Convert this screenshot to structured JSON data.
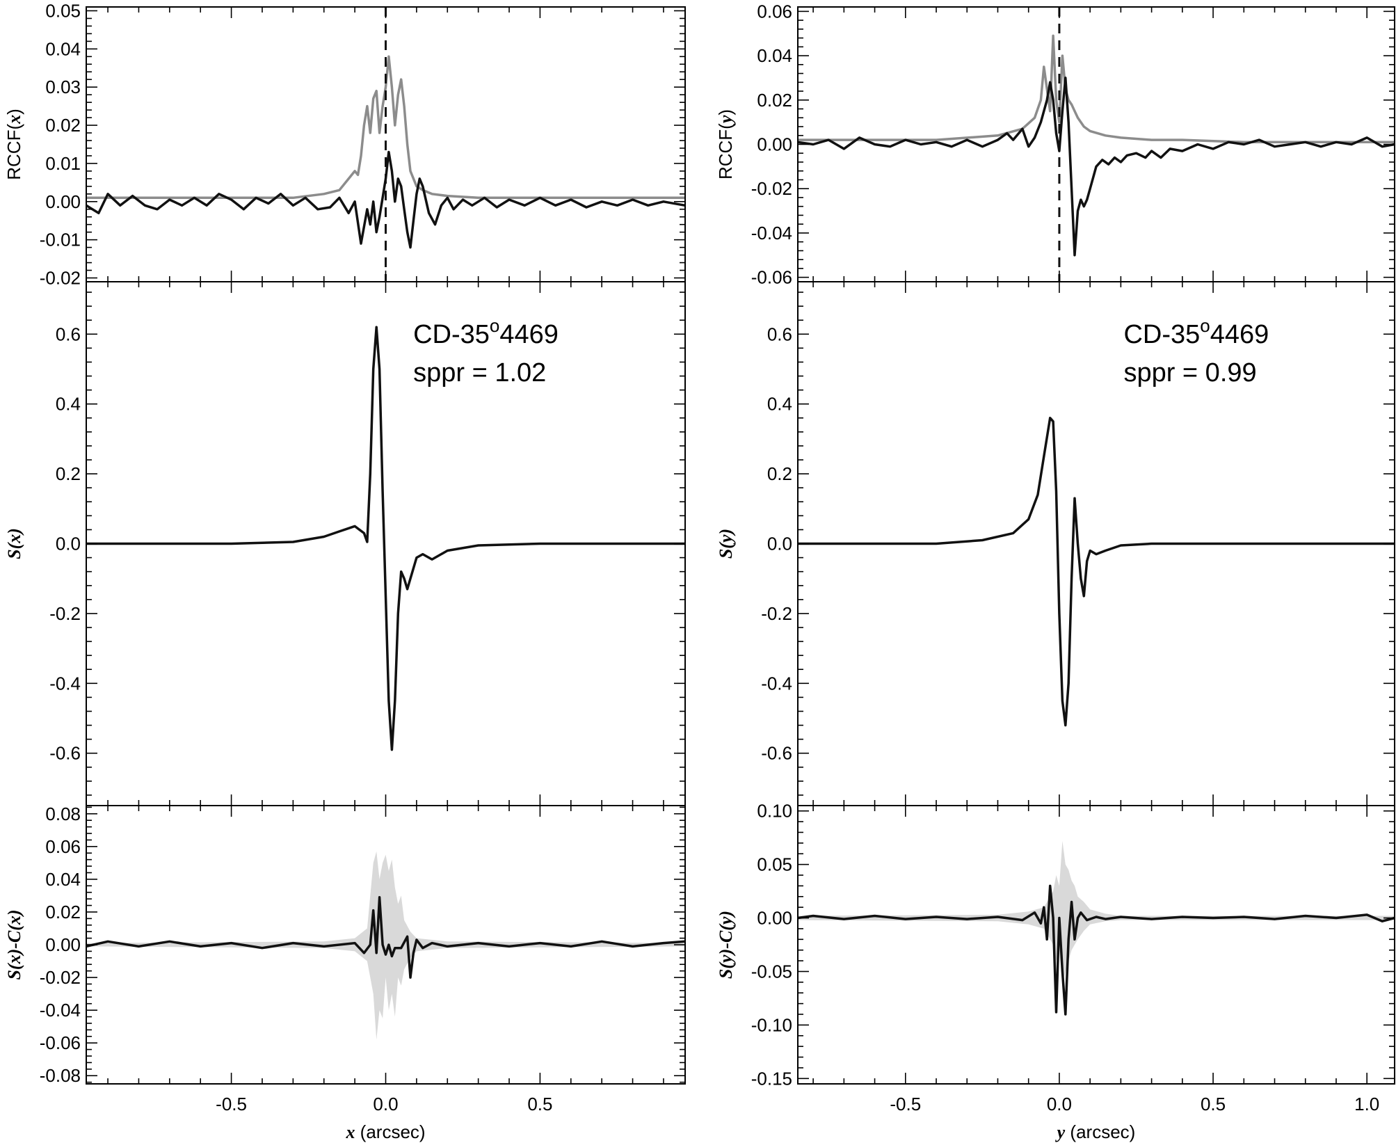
{
  "chart_data": [
    {
      "type": "line",
      "panel": "left-top",
      "ylabel": "RCCF(x)",
      "ylabel_parts": [
        "RCCF(",
        "x",
        ")"
      ],
      "xlim": [
        -0.97,
        0.97
      ],
      "ylim": [
        -0.021,
        0.051
      ],
      "yticks": [
        -0.02,
        -0.01,
        0.0,
        0.01,
        0.02,
        0.03,
        0.04,
        0.05
      ],
      "ytick_labels": [
        "-0.02",
        "-0.01",
        "0.00",
        "0.01",
        "0.02",
        "0.03",
        "0.04",
        "0.05"
      ],
      "xticks": [
        -0.5,
        0.0,
        0.5
      ],
      "reference_line": {
        "x": 0.0,
        "style": "dashed"
      },
      "series": [
        {
          "color": "#8c8c8c",
          "x": [
            -0.97,
            -0.3,
            -0.2,
            -0.15,
            -0.12,
            -0.1,
            -0.09,
            -0.08,
            -0.07,
            -0.06,
            -0.05,
            -0.04,
            -0.03,
            -0.02,
            -0.01,
            0.0,
            0.01,
            0.02,
            0.03,
            0.04,
            0.05,
            0.06,
            0.07,
            0.08,
            0.1,
            0.12,
            0.15,
            0.2,
            0.3,
            0.97
          ],
          "y": [
            0.001,
            0.001,
            0.002,
            0.003,
            0.006,
            0.008,
            0.007,
            0.012,
            0.02,
            0.025,
            0.018,
            0.027,
            0.029,
            0.018,
            0.025,
            0.03,
            0.038,
            0.03,
            0.02,
            0.028,
            0.032,
            0.025,
            0.015,
            0.008,
            0.004,
            0.003,
            0.002,
            0.0015,
            0.001,
            0.001
          ]
        },
        {
          "color": "#111111",
          "x": [
            -0.97,
            -0.93,
            -0.9,
            -0.86,
            -0.82,
            -0.78,
            -0.74,
            -0.7,
            -0.66,
            -0.62,
            -0.58,
            -0.54,
            -0.5,
            -0.46,
            -0.42,
            -0.38,
            -0.34,
            -0.3,
            -0.26,
            -0.22,
            -0.18,
            -0.15,
            -0.12,
            -0.1,
            -0.08,
            -0.06,
            -0.05,
            -0.04,
            -0.03,
            -0.02,
            -0.01,
            0.0,
            0.01,
            0.02,
            0.03,
            0.04,
            0.05,
            0.06,
            0.07,
            0.08,
            0.09,
            0.1,
            0.11,
            0.12,
            0.14,
            0.16,
            0.18,
            0.2,
            0.22,
            0.25,
            0.28,
            0.32,
            0.36,
            0.4,
            0.45,
            0.5,
            0.55,
            0.6,
            0.65,
            0.7,
            0.75,
            0.8,
            0.85,
            0.9,
            0.97
          ],
          "y": [
            -0.001,
            -0.003,
            0.002,
            -0.001,
            0.0015,
            -0.001,
            -0.002,
            0.0005,
            -0.001,
            0.001,
            -0.001,
            0.002,
            0.0005,
            -0.002,
            0.001,
            -0.0005,
            0.002,
            -0.001,
            0.001,
            -0.002,
            -0.0015,
            0.001,
            -0.003,
            0.0,
            -0.011,
            -0.002,
            -0.006,
            0.0,
            -0.008,
            -0.004,
            0.001,
            0.006,
            0.013,
            0.008,
            0.0,
            0.006,
            0.004,
            -0.002,
            -0.008,
            -0.012,
            -0.005,
            0.002,
            0.006,
            0.004,
            -0.003,
            -0.006,
            -0.001,
            0.001,
            -0.002,
            0.0005,
            -0.001,
            0.001,
            -0.0015,
            0.0005,
            -0.001,
            0.001,
            -0.001,
            0.0005,
            -0.0015,
            0.0,
            -0.001,
            0.0005,
            -0.001,
            0.0,
            -0.001
          ]
        }
      ]
    },
    {
      "type": "line",
      "panel": "left-middle",
      "ylabel": "S(x)",
      "ylabel_parts": [
        "",
        "S(x)",
        ""
      ],
      "xlim": [
        -0.97,
        0.97
      ],
      "ylim": [
        -0.75,
        0.75
      ],
      "yticks": [
        -0.6,
        -0.4,
        -0.2,
        0.0,
        0.2,
        0.4,
        0.6
      ],
      "ytick_labels": [
        "-0.6",
        "-0.4",
        "-0.2",
        "0.0",
        "0.2",
        "0.4",
        "0.6"
      ],
      "xticks": [
        -0.5,
        0.0,
        0.5
      ],
      "annotation": {
        "name": "CD-35",
        "superscript": "o",
        "suffix": "4469",
        "sppr": "sppr = 1.02"
      },
      "series": [
        {
          "color": "#111111",
          "x": [
            -0.97,
            -0.5,
            -0.3,
            -0.2,
            -0.15,
            -0.1,
            -0.07,
            -0.06,
            -0.05,
            -0.04,
            -0.03,
            -0.02,
            -0.01,
            0.0,
            0.01,
            0.02,
            0.03,
            0.04,
            0.05,
            0.06,
            0.07,
            0.08,
            0.1,
            0.12,
            0.15,
            0.2,
            0.3,
            0.5,
            0.97
          ],
          "y": [
            0.0,
            0.0,
            0.005,
            0.02,
            0.035,
            0.05,
            0.03,
            0.005,
            0.2,
            0.5,
            0.62,
            0.5,
            0.15,
            -0.15,
            -0.45,
            -0.59,
            -0.45,
            -0.2,
            -0.08,
            -0.1,
            -0.13,
            -0.1,
            -0.04,
            -0.03,
            -0.045,
            -0.02,
            -0.005,
            0.0,
            0.0
          ]
        }
      ]
    },
    {
      "type": "line",
      "panel": "left-bottom",
      "ylabel": "S(x)-C(x)",
      "ylabel_parts": [
        "",
        "S(x)-C(x)",
        ""
      ],
      "xlim": [
        -0.97,
        0.97
      ],
      "ylim": [
        -0.085,
        0.085
      ],
      "yticks": [
        -0.08,
        -0.06,
        -0.04,
        -0.02,
        0.0,
        0.02,
        0.04,
        0.06,
        0.08
      ],
      "ytick_labels": [
        "-0.08",
        "-0.06",
        "-0.04",
        "-0.02",
        "0.00",
        "0.02",
        "0.04",
        "0.06",
        "0.08"
      ],
      "xticks": [
        -0.5,
        0.0,
        0.5
      ],
      "xtick_labels": [
        "-0.5",
        "0.0",
        "0.5"
      ],
      "xlabel": "x (arcsec)",
      "xlabel_parts": [
        "x",
        " (arcsec)"
      ],
      "band": {
        "color": "#d9d9d9",
        "x": [
          -0.97,
          -0.2,
          -0.1,
          -0.06,
          -0.04,
          -0.03,
          -0.02,
          -0.01,
          0.0,
          0.01,
          0.02,
          0.03,
          0.04,
          0.05,
          0.06,
          0.08,
          0.1,
          0.2,
          0.97
        ],
        "upper": [
          0.001,
          0.002,
          0.004,
          0.01,
          0.05,
          0.057,
          0.04,
          0.05,
          0.055,
          0.045,
          0.052,
          0.035,
          0.025,
          0.03,
          0.015,
          0.008,
          0.004,
          0.002,
          0.001
        ],
        "lower": [
          -0.001,
          -0.002,
          -0.004,
          -0.01,
          -0.03,
          -0.058,
          -0.04,
          -0.045,
          -0.02,
          -0.04,
          -0.03,
          -0.044,
          -0.02,
          -0.025,
          -0.015,
          -0.008,
          -0.004,
          -0.002,
          -0.001
        ]
      },
      "series": [
        {
          "color": "#111111",
          "x": [
            -0.97,
            -0.9,
            -0.8,
            -0.7,
            -0.6,
            -0.5,
            -0.4,
            -0.3,
            -0.2,
            -0.1,
            -0.07,
            -0.05,
            -0.04,
            -0.03,
            -0.02,
            -0.01,
            0.0,
            0.01,
            0.02,
            0.03,
            0.05,
            0.07,
            0.08,
            0.09,
            0.1,
            0.12,
            0.15,
            0.2,
            0.3,
            0.4,
            0.5,
            0.6,
            0.7,
            0.8,
            0.9,
            0.97
          ],
          "y": [
            -0.001,
            0.002,
            -0.001,
            0.002,
            -0.001,
            0.001,
            -0.002,
            0.001,
            -0.001,
            0.001,
            -0.005,
            0.0,
            0.021,
            -0.005,
            0.029,
            0.0,
            -0.006,
            0.0,
            -0.007,
            -0.002,
            -0.002,
            0.005,
            -0.02,
            -0.005,
            0.003,
            -0.002,
            0.001,
            -0.001,
            0.001,
            -0.001,
            0.001,
            -0.001,
            0.002,
            -0.001,
            0.001,
            0.002
          ]
        }
      ]
    },
    {
      "type": "line",
      "panel": "right-top",
      "ylabel": "RCCF(y)",
      "ylabel_parts": [
        "RCCF(",
        "y",
        ")"
      ],
      "xlim": [
        -0.85,
        1.09
      ],
      "ylim": [
        -0.062,
        0.062
      ],
      "yticks": [
        -0.06,
        -0.04,
        -0.02,
        0.0,
        0.02,
        0.04,
        0.06
      ],
      "ytick_labels": [
        "-0.06",
        "-0.04",
        "-0.02",
        "0.00",
        "0.02",
        "0.04",
        "0.06"
      ],
      "xticks": [
        -0.5,
        0.0,
        0.5,
        1.0
      ],
      "reference_line": {
        "x": 0.0,
        "style": "dashed"
      },
      "series": [
        {
          "color": "#8c8c8c",
          "x": [
            -0.85,
            -0.4,
            -0.2,
            -0.12,
            -0.08,
            -0.06,
            -0.05,
            -0.04,
            -0.03,
            -0.02,
            -0.01,
            0.0,
            0.01,
            0.02,
            0.03,
            0.04,
            0.05,
            0.06,
            0.08,
            0.1,
            0.15,
            0.2,
            0.3,
            0.4,
            0.6,
            1.09
          ],
          "y": [
            0.002,
            0.002,
            0.004,
            0.007,
            0.012,
            0.02,
            0.035,
            0.025,
            0.015,
            0.049,
            0.02,
            0.01,
            0.04,
            0.025,
            0.02,
            0.018,
            0.015,
            0.012,
            0.008,
            0.006,
            0.004,
            0.003,
            0.002,
            0.002,
            0.001,
            0.001
          ]
        },
        {
          "color": "#111111",
          "x": [
            -0.85,
            -0.8,
            -0.75,
            -0.7,
            -0.65,
            -0.6,
            -0.55,
            -0.5,
            -0.45,
            -0.4,
            -0.35,
            -0.3,
            -0.25,
            -0.2,
            -0.17,
            -0.15,
            -0.12,
            -0.1,
            -0.08,
            -0.06,
            -0.04,
            -0.03,
            -0.02,
            -0.01,
            0.0,
            0.01,
            0.02,
            0.03,
            0.04,
            0.05,
            0.06,
            0.07,
            0.08,
            0.09,
            0.1,
            0.12,
            0.14,
            0.16,
            0.18,
            0.2,
            0.22,
            0.25,
            0.28,
            0.3,
            0.33,
            0.36,
            0.4,
            0.45,
            0.5,
            0.55,
            0.6,
            0.65,
            0.7,
            0.75,
            0.8,
            0.85,
            0.9,
            0.95,
            1.0,
            1.05,
            1.09
          ],
          "y": [
            0.001,
            0.0,
            0.002,
            -0.002,
            0.003,
            0.0,
            -0.001,
            0.002,
            0.0,
            0.001,
            -0.001,
            0.002,
            -0.001,
            0.002,
            0.005,
            0.002,
            0.007,
            -0.001,
            0.003,
            0.01,
            0.02,
            0.028,
            0.02,
            0.005,
            -0.003,
            0.015,
            0.03,
            0.01,
            -0.02,
            -0.05,
            -0.03,
            -0.025,
            -0.028,
            -0.025,
            -0.02,
            -0.01,
            -0.007,
            -0.009,
            -0.006,
            -0.008,
            -0.005,
            -0.004,
            -0.006,
            -0.003,
            -0.006,
            -0.002,
            -0.003,
            0.0,
            -0.002,
            0.001,
            0.0,
            0.002,
            -0.001,
            0.0,
            0.001,
            -0.001,
            0.001,
            0.0,
            0.003,
            -0.001,
            0.0
          ]
        }
      ]
    },
    {
      "type": "line",
      "panel": "right-middle",
      "ylabel": "S(y)",
      "ylabel_parts": [
        "",
        "S(y)",
        ""
      ],
      "xlim": [
        -0.85,
        1.09
      ],
      "ylim": [
        -0.75,
        0.75
      ],
      "yticks": [
        -0.6,
        -0.4,
        -0.2,
        0.0,
        0.2,
        0.4,
        0.6
      ],
      "ytick_labels": [
        "-0.6",
        "-0.4",
        "-0.2",
        "0.0",
        "0.2",
        "0.4",
        "0.6"
      ],
      "xticks": [
        -0.5,
        0.0,
        0.5,
        1.0
      ],
      "annotation": {
        "name": "CD-35",
        "superscript": "o",
        "suffix": "4469",
        "sppr": "sppr = 0.99"
      },
      "series": [
        {
          "color": "#111111",
          "x": [
            -0.85,
            -0.4,
            -0.25,
            -0.15,
            -0.1,
            -0.07,
            -0.05,
            -0.03,
            -0.02,
            -0.01,
            0.0,
            0.01,
            0.02,
            0.03,
            0.04,
            0.05,
            0.06,
            0.07,
            0.08,
            0.09,
            0.1,
            0.12,
            0.15,
            0.2,
            0.3,
            0.5,
            0.8,
            1.09
          ],
          "y": [
            0.0,
            0.0,
            0.01,
            0.03,
            0.07,
            0.14,
            0.25,
            0.36,
            0.35,
            0.15,
            -0.2,
            -0.45,
            -0.52,
            -0.4,
            -0.1,
            0.13,
            0.0,
            -0.1,
            -0.15,
            -0.05,
            -0.02,
            -0.03,
            -0.02,
            -0.005,
            0.0,
            0.0,
            0.0,
            0.0
          ]
        }
      ]
    },
    {
      "type": "line",
      "panel": "right-bottom",
      "ylabel": "S(y)-C(y)",
      "ylabel_parts": [
        "",
        "S(y)-C(y)",
        ""
      ],
      "xlim": [
        -0.85,
        1.09
      ],
      "ylim": [
        -0.155,
        0.105
      ],
      "yticks": [
        -0.15,
        -0.1,
        -0.05,
        0.0,
        0.05,
        0.1
      ],
      "ytick_labels": [
        "-0.15",
        "-0.10",
        "-0.05",
        "0.00",
        "0.05",
        "0.10"
      ],
      "xticks": [
        -0.5,
        0.0,
        0.5,
        1.0
      ],
      "xtick_labels": [
        "-0.5",
        "0.0",
        "0.5",
        "1.0"
      ],
      "xlabel": "y (arcsec)",
      "xlabel_parts": [
        "y",
        " (arcsec)"
      ],
      "band": {
        "color": "#d9d9d9",
        "x": [
          -0.85,
          -0.2,
          -0.1,
          -0.05,
          -0.03,
          -0.02,
          -0.01,
          0.0,
          0.01,
          0.02,
          0.03,
          0.04,
          0.05,
          0.06,
          0.08,
          0.1,
          0.15,
          0.2,
          1.09
        ],
        "upper": [
          0.002,
          0.003,
          0.006,
          0.01,
          0.02,
          0.025,
          0.04,
          0.03,
          0.072,
          0.05,
          0.045,
          0.035,
          0.03,
          0.02,
          0.015,
          0.008,
          0.004,
          0.002,
          0.002
        ],
        "lower": [
          -0.002,
          -0.003,
          -0.006,
          -0.01,
          -0.02,
          -0.025,
          -0.04,
          -0.03,
          -0.06,
          -0.05,
          -0.04,
          -0.03,
          -0.025,
          -0.02,
          -0.012,
          -0.006,
          -0.003,
          -0.002,
          -0.002
        ]
      },
      "series": [
        {
          "color": "#111111",
          "x": [
            -0.85,
            -0.8,
            -0.7,
            -0.6,
            -0.5,
            -0.4,
            -0.3,
            -0.2,
            -0.12,
            -0.08,
            -0.06,
            -0.05,
            -0.04,
            -0.03,
            -0.02,
            -0.01,
            0.0,
            0.01,
            0.02,
            0.03,
            0.04,
            0.05,
            0.06,
            0.07,
            0.09,
            0.12,
            0.15,
            0.2,
            0.3,
            0.4,
            0.5,
            0.6,
            0.7,
            0.8,
            0.9,
            1.0,
            1.05,
            1.09
          ],
          "y": [
            0.0,
            0.002,
            -0.001,
            0.002,
            -0.001,
            0.001,
            -0.001,
            0.001,
            -0.002,
            0.005,
            -0.005,
            0.01,
            -0.02,
            0.03,
            0.0,
            -0.088,
            0.0,
            -0.05,
            -0.09,
            -0.02,
            0.015,
            -0.02,
            0.0,
            0.005,
            -0.002,
            0.001,
            -0.001,
            0.001,
            -0.001,
            0.001,
            0.0,
            0.001,
            -0.001,
            0.002,
            0.0,
            0.003,
            -0.003,
            0.0
          ]
        }
      ]
    }
  ]
}
